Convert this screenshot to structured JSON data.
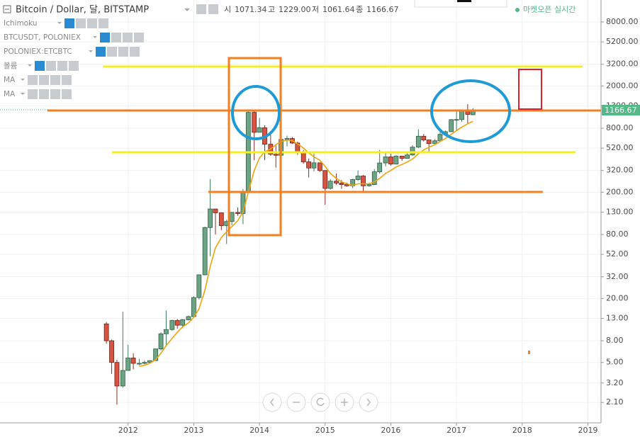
{
  "toolbar": {
    "readout": [
      {
        "label": "시",
        "value": "1071.34"
      },
      {
        "label": "고",
        "value": "1229.00"
      },
      {
        "label": "저",
        "value": "1061.64"
      },
      {
        "label": "종",
        "value": "1166.67"
      }
    ],
    "status": "마켓오픈 실시간"
  },
  "indicators": [
    "Ichimoku",
    "BTCUSDT, POLONIEX",
    "POLONIEX:ETCBTC",
    "볼륨",
    "MA",
    "MA"
  ],
  "chart_data": {
    "type": "candlestick",
    "title": "Bitcoin / Dollar, 달, BITSTAMP",
    "x": [
      2011.67,
      2011.75,
      2011.83,
      2011.92,
      2012.0,
      2012.08,
      2012.17,
      2012.25,
      2012.33,
      2012.42,
      2012.5,
      2012.58,
      2012.67,
      2012.75,
      2012.83,
      2012.92,
      2013.0,
      2013.08,
      2013.17,
      2013.25,
      2013.33,
      2013.42,
      2013.5,
      2013.58,
      2013.67,
      2013.75,
      2013.83,
      2013.92,
      2014.0,
      2014.08,
      2014.17,
      2014.25,
      2014.33,
      2014.42,
      2014.5,
      2014.58,
      2014.67,
      2014.75,
      2014.83,
      2014.92,
      2015.0,
      2015.08,
      2015.17,
      2015.25,
      2015.33,
      2015.42,
      2015.5,
      2015.58,
      2015.67,
      2015.75,
      2015.83,
      2015.92,
      2016.0,
      2016.08,
      2016.17,
      2016.25,
      2016.33,
      2016.42,
      2016.5,
      2016.58,
      2016.67,
      2016.75,
      2016.83,
      2016.92,
      2017.0,
      2017.08,
      2017.17,
      2017.25
    ],
    "ohlc": [
      [
        11.5,
        12,
        7.5,
        8.0
      ],
      [
        8.0,
        8.2,
        3.9,
        5.0
      ],
      [
        5.0,
        5.3,
        2.0,
        3.0
      ],
      [
        3.0,
        15,
        2.9,
        4.2
      ],
      [
        4.2,
        7.3,
        4.2,
        5.5
      ],
      [
        5.5,
        6.1,
        4.3,
        4.9
      ],
      [
        4.9,
        5.4,
        4.7,
        4.9
      ],
      [
        4.9,
        5.2,
        4.8,
        5.0
      ],
      [
        5.0,
        5.2,
        4.9,
        5.2
      ],
      [
        5.2,
        6.7,
        5.2,
        6.7
      ],
      [
        6.7,
        9.6,
        6.5,
        9.3
      ],
      [
        9.3,
        15.4,
        7.1,
        10.2
      ],
      [
        10.2,
        12.6,
        9.9,
        12.4
      ],
      [
        12.4,
        12.8,
        10.4,
        11.2
      ],
      [
        11.2,
        12.8,
        10.5,
        12.6
      ],
      [
        12.6,
        13.8,
        12.4,
        13.5
      ],
      [
        13.5,
        21,
        13.2,
        20.4
      ],
      [
        20.4,
        33.5,
        19.6,
        33.4
      ],
      [
        33.4,
        95,
        33,
        93
      ],
      [
        93,
        266,
        50,
        139
      ],
      [
        139,
        140,
        80,
        128
      ],
      [
        128,
        129,
        88,
        97
      ],
      [
        97,
        110,
        65,
        106
      ],
      [
        106,
        130,
        98,
        129
      ],
      [
        129,
        144,
        120,
        126
      ],
      [
        126,
        214,
        100,
        204
      ],
      [
        204,
        1163,
        197,
        1128
      ],
      [
        1128,
        1163,
        400,
        732
      ],
      [
        732,
        1000,
        732,
        808
      ],
      [
        808,
        850,
        400,
        566
      ],
      [
        566,
        720,
        440,
        455
      ],
      [
        455,
        550,
        340,
        445
      ],
      [
        445,
        630,
        440,
        628
      ],
      [
        628,
        680,
        540,
        640
      ],
      [
        640,
        660,
        570,
        580
      ],
      [
        580,
        600,
        450,
        480
      ],
      [
        480,
        500,
        370,
        386
      ],
      [
        386,
        415,
        275,
        338
      ],
      [
        338,
        460,
        315,
        378
      ],
      [
        378,
        380,
        310,
        320
      ],
      [
        320,
        320,
        152,
        217
      ],
      [
        217,
        265,
        212,
        254
      ],
      [
        254,
        300,
        235,
        244
      ],
      [
        244,
        260,
        215,
        236
      ],
      [
        236,
        245,
        225,
        230
      ],
      [
        230,
        268,
        218,
        263
      ],
      [
        263,
        320,
        255,
        284
      ],
      [
        284,
        290,
        198,
        230
      ],
      [
        230,
        245,
        225,
        236
      ],
      [
        236,
        330,
        236,
        311
      ],
      [
        311,
        500,
        298,
        377
      ],
      [
        377,
        470,
        350,
        430
      ],
      [
        430,
        460,
        355,
        368
      ],
      [
        368,
        445,
        365,
        437
      ],
      [
        437,
        440,
        395,
        416
      ],
      [
        416,
        470,
        412,
        448
      ],
      [
        448,
        555,
        440,
        531
      ],
      [
        531,
        780,
        520,
        673
      ],
      [
        673,
        706,
        600,
        621
      ],
      [
        621,
        627,
        470,
        574
      ],
      [
        574,
        630,
        570,
        609
      ],
      [
        609,
        740,
        605,
        700
      ],
      [
        700,
        760,
        690,
        742
      ],
      [
        742,
        975,
        740,
        964
      ],
      [
        964,
        1150,
        750,
        966
      ],
      [
        966,
        1200,
        915,
        1190
      ],
      [
        1190,
        1350,
        890,
        1080
      ],
      [
        1071.34,
        1229,
        1061.64,
        1166.67
      ]
    ],
    "up_color": "#6ba583",
    "down_color": "#d75442",
    "ma": {
      "color": "#f0a30a",
      "values": [
        null,
        null,
        null,
        null,
        null,
        null,
        4.6,
        4.7,
        4.9,
        5.3,
        6.1,
        7.2,
        8.4,
        9.6,
        10.8,
        11.8,
        13.3,
        16,
        24,
        40,
        60,
        75,
        85,
        95,
        108,
        130,
        200,
        320,
        420,
        480,
        510,
        560,
        600,
        620,
        610,
        570,
        520,
        470,
        430,
        400,
        350,
        300,
        270,
        250,
        240,
        232,
        240,
        240,
        240,
        250,
        270,
        300,
        320,
        345,
        365,
        385,
        410,
        460,
        500,
        530,
        560,
        600,
        640,
        700,
        760,
        820,
        880,
        930
      ]
    },
    "last_price_color": "#53b987",
    "log_scale": true,
    "grid": true,
    "ylim": [
      1.35,
      12880
    ],
    "yticks": [
      {
        "value": 2.1,
        "label": "2.10"
      },
      {
        "value": 3.2,
        "label": "3.20"
      },
      {
        "value": 5,
        "label": "5.00"
      },
      {
        "value": 8,
        "label": "8.00"
      },
      {
        "value": 13,
        "label": "13.00"
      },
      {
        "value": 20,
        "label": "20.00"
      },
      {
        "value": 32,
        "label": "32.00"
      },
      {
        "value": 52,
        "label": "52.00"
      },
      {
        "value": 80,
        "label": "80.00"
      },
      {
        "value": 130,
        "label": "130.00"
      },
      {
        "value": 200,
        "label": "200.00"
      },
      {
        "value": 320,
        "label": "320.00"
      },
      {
        "value": 520,
        "label": "520.00"
      },
      {
        "value": 800,
        "label": "800.00"
      },
      {
        "value": 1300,
        "label": "1300.00"
      },
      {
        "value": 2000,
        "label": "2000.00"
      },
      {
        "value": 3200,
        "label": "3200.00"
      },
      {
        "value": 5200,
        "label": "5200.00"
      },
      {
        "value": 8000,
        "label": "8000.00"
      }
    ],
    "xlim": [
      2010.05,
      2019.2
    ],
    "xticks": [
      2012,
      2013,
      2014,
      2015,
      2016,
      2017,
      2018,
      2019
    ]
  }
}
